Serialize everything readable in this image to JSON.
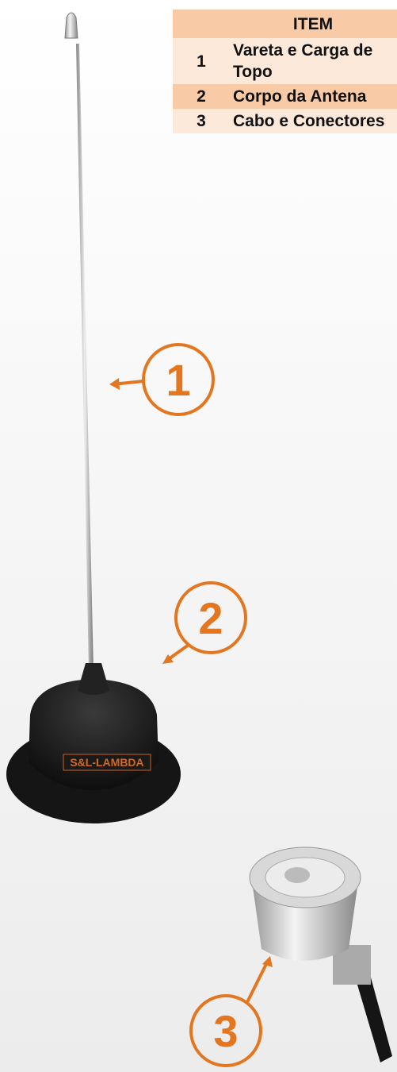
{
  "table": {
    "header": "ITEM",
    "rows": [
      [
        "1",
        "Vareta e Carga de Topo"
      ],
      [
        "2",
        "Corpo da Antena"
      ],
      [
        "3",
        "Cabo e Conectores"
      ]
    ]
  },
  "callouts": [
    "1",
    "2",
    "3"
  ],
  "base_label": "S&L-LAMBDA"
}
